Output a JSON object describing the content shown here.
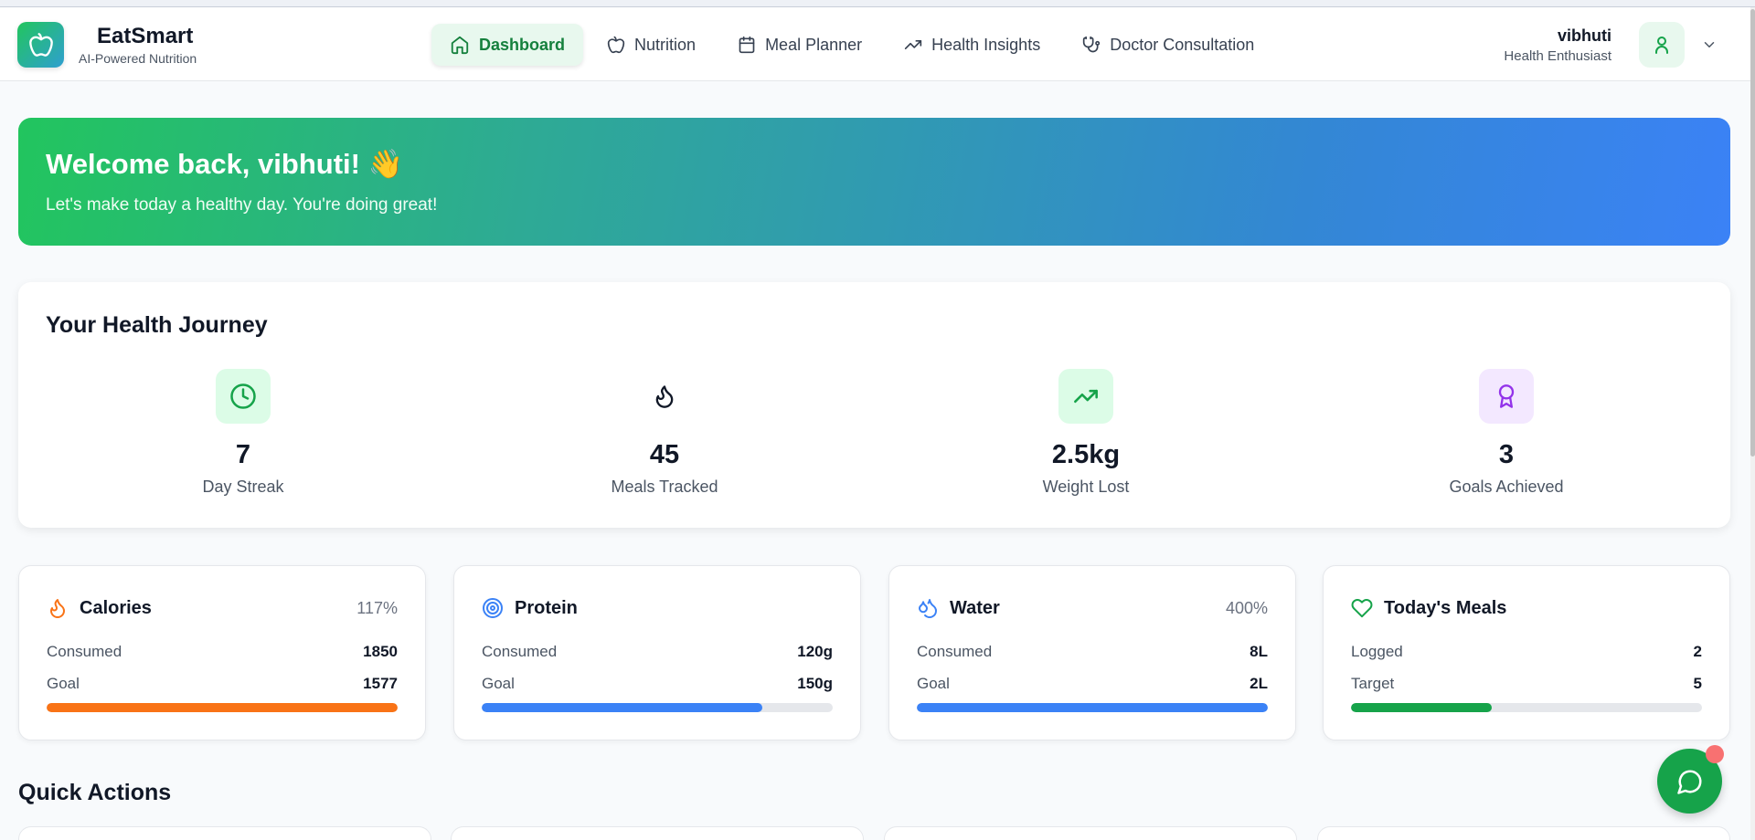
{
  "app": {
    "name": "EatSmart",
    "tagline": "AI-Powered Nutrition"
  },
  "nav": {
    "items": [
      {
        "label": "Dashboard",
        "icon": "home-icon",
        "active": true
      },
      {
        "label": "Nutrition",
        "icon": "apple-icon"
      },
      {
        "label": "Meal Planner",
        "icon": "calendar-icon"
      },
      {
        "label": "Health Insights",
        "icon": "trending-up-icon"
      },
      {
        "label": "Doctor Consultation",
        "icon": "stethoscope-icon"
      }
    ]
  },
  "user": {
    "name": "vibhuti",
    "role": "Health Enthusiast"
  },
  "welcome": {
    "title": "Welcome back, vibhuti! 👋",
    "subtitle": "Let's make today a healthy day. You're doing great!"
  },
  "journey": {
    "title": "Your Health Journey",
    "stats": [
      {
        "value": "7",
        "label": "Day Streak",
        "icon": "clock-icon"
      },
      {
        "value": "45",
        "label": "Meals Tracked",
        "icon": "flame-icon"
      },
      {
        "value": "2.5kg",
        "label": "Weight Lost",
        "icon": "trending-up-icon"
      },
      {
        "value": "3",
        "label": "Goals Achieved",
        "icon": "award-icon"
      }
    ]
  },
  "metrics": [
    {
      "title": "Calories",
      "icon": "flame-icon",
      "percent": "117%",
      "row1_label": "Consumed",
      "row1_value": "1850",
      "row2_label": "Goal",
      "row2_value": "1577",
      "progress": 1.0,
      "color": "#f97316"
    },
    {
      "title": "Protein",
      "icon": "target-icon",
      "percent": "",
      "row1_label": "Consumed",
      "row1_value": "120g",
      "row2_label": "Goal",
      "row2_value": "150g",
      "progress": 0.8,
      "color": "#3b82f6"
    },
    {
      "title": "Water",
      "icon": "droplets-icon",
      "percent": "400%",
      "row1_label": "Consumed",
      "row1_value": "8L",
      "row2_label": "Goal",
      "row2_value": "2L",
      "progress": 1.0,
      "color": "#3b82f6"
    },
    {
      "title": "Today's Meals",
      "icon": "heart-icon",
      "percent": "",
      "row1_label": "Logged",
      "row1_value": "2",
      "row2_label": "Target",
      "row2_value": "5",
      "progress": 0.4,
      "color": "#16a34a"
    }
  ],
  "quick_actions": {
    "title": "Quick Actions"
  },
  "colors": {
    "accent": "#16a34a",
    "banner_start": "#22c55e",
    "banner_end": "#3b82f6"
  }
}
